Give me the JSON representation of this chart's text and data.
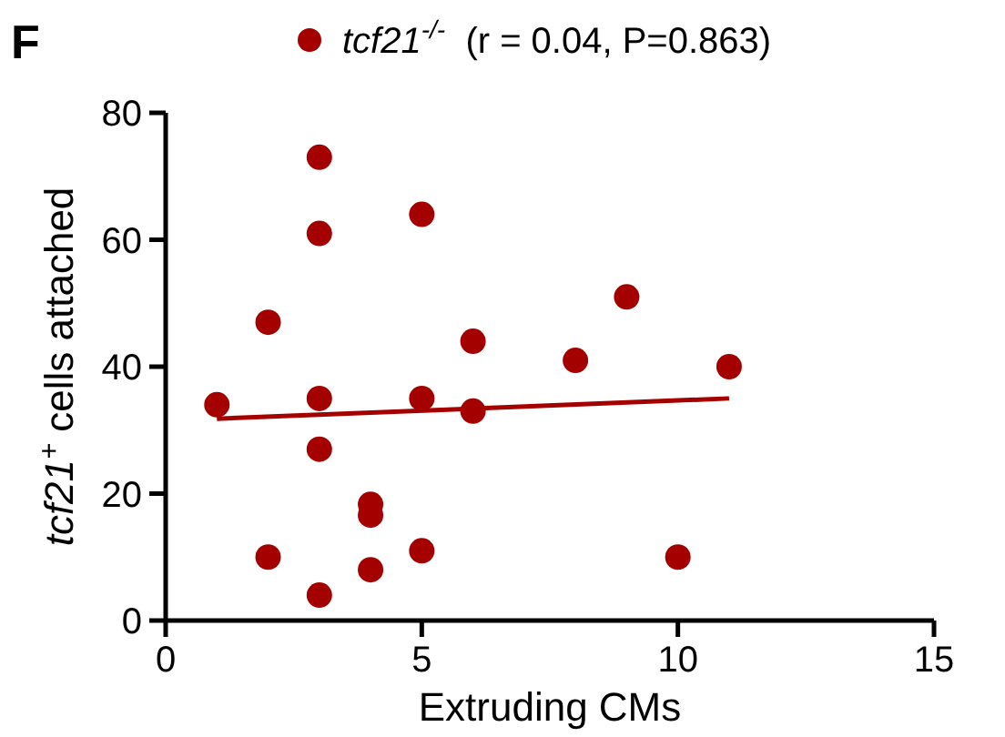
{
  "chart_data": {
    "type": "scatter",
    "title": "F",
    "xlabel": "Extruding CMs",
    "ylabel": "tcf21$^{+}$ cells attached",
    "xlim": [
      0,
      15
    ],
    "xticks": [
      0,
      5,
      10,
      15
    ],
    "ylim": [
      0,
      80
    ],
    "yticks": [
      0,
      20,
      40,
      60,
      80
    ],
    "grid": false,
    "legend": "top",
    "marker": "circle",
    "series": [
      {
        "name": "tcf21$^{-/-}$  (r = 0.04, P=0.863)",
        "color": "#a50000",
        "x": [
          1,
          2,
          2,
          3,
          3,
          3,
          3,
          3,
          4,
          4,
          4,
          5,
          5,
          5,
          6,
          6,
          8,
          9,
          10,
          11
        ],
        "values": [
          34,
          47,
          10,
          73,
          61,
          35,
          27,
          4,
          18.3,
          16.6,
          8,
          64,
          35,
          11,
          44,
          33,
          41,
          51,
          10,
          40
        ]
      },
      {
        "type": "line",
        "color": "#a50000",
        "x": [
          1,
          11
        ],
        "values": [
          31.8,
          35
        ],
        "marker": "none",
        "line_style": "solid"
      }
    ]
  }
}
